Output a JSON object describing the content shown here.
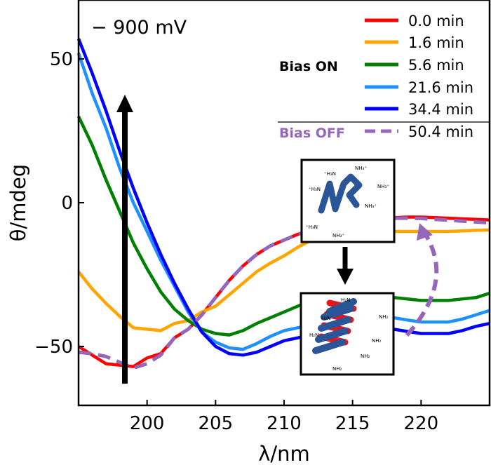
{
  "chart_data": {
    "type": "line",
    "xlabel": "λ/nm",
    "ylabel": "θ/mdeg",
    "xlim": [
      195,
      225
    ],
    "ylim": [
      -70.5,
      70.5
    ],
    "xticks": [
      200,
      205,
      210,
      215,
      220
    ],
    "yticks": [
      -50,
      0,
      50
    ],
    "grid": false,
    "annotation": "− 900 mV",
    "legend": {
      "placement": "top-right",
      "group_on_label": "Bias ON",
      "group_off_label": "Bias OFF"
    },
    "x": [
      195,
      196,
      197,
      198,
      199,
      200,
      201,
      202,
      203,
      204,
      205,
      206,
      207,
      208,
      209,
      210,
      211,
      212,
      213,
      214,
      215,
      216,
      217,
      218,
      219,
      220,
      221,
      222,
      223,
      224,
      225
    ],
    "series": [
      {
        "name": "0.0 min",
        "group": "on",
        "color": "#ff0000",
        "style": "solid",
        "values": [
          -50,
          -53,
          -56,
          -56.5,
          -57,
          -54,
          -52.5,
          -47,
          -44,
          -39,
          -33,
          -27,
          -22,
          -18,
          -15,
          -13,
          -11,
          -9.5,
          -8,
          -7,
          -6.5,
          -6,
          -5.5,
          -5.2,
          -5,
          -5,
          -5.2,
          -5.4,
          -5.6,
          -5.8,
          -6
        ]
      },
      {
        "name": "1.6 min",
        "group": "on",
        "color": "#ffa500",
        "style": "solid",
        "values": [
          -24,
          -30,
          -35,
          -39.5,
          -43.5,
          -44,
          -44.5,
          -42,
          -41,
          -38,
          -36,
          -32,
          -28,
          -24,
          -21,
          -18.5,
          -15.5,
          -13,
          -11.5,
          -10.5,
          -9.8,
          -9.3,
          -9.5,
          -10,
          -10,
          -10,
          -10,
          -10,
          -9.8,
          -9.6,
          -9.5
        ]
      },
      {
        "name": "5.6 min",
        "group": "on",
        "color": "#008000",
        "style": "solid",
        "values": [
          30,
          20,
          8,
          -3,
          -14,
          -23,
          -31,
          -37,
          -41,
          -44,
          -45.5,
          -46,
          -44.5,
          -42,
          -40,
          -38,
          -36,
          -34,
          -33.2,
          -32.7,
          -32.5,
          -32.5,
          -32.6,
          -33,
          -33.5,
          -34,
          -34,
          -34,
          -33.5,
          -33,
          -31.5
        ]
      },
      {
        "name": "21.6 min",
        "group": "on",
        "color": "#1e90ff",
        "style": "solid",
        "values": [
          52,
          38,
          26,
          12,
          0,
          -10,
          -20,
          -29,
          -38,
          -45,
          -48.5,
          -50.5,
          -51,
          -49,
          -46.5,
          -44.5,
          -43.5,
          -42.5,
          -41.2,
          -40.2,
          -39.7,
          -39.5,
          -39.7,
          -40,
          -40.8,
          -41.5,
          -41.5,
          -41.5,
          -40.5,
          -39,
          -37.5
        ]
      },
      {
        "name": "34.4 min",
        "group": "on",
        "color": "#0000ff",
        "style": "solid",
        "values": [
          57,
          45,
          32,
          18,
          5,
          -7,
          -18,
          -28,
          -37,
          -45,
          -50,
          -52.5,
          -53,
          -52,
          -50,
          -48,
          -47,
          -46,
          -45,
          -44,
          -43.7,
          -43.5,
          -43.7,
          -44,
          -44.8,
          -45.5,
          -45.5,
          -45.5,
          -44.5,
          -43,
          -42
        ]
      },
      {
        "name": "50.4 min",
        "group": "off",
        "color": "#9467bd",
        "style": "dashed",
        "values": [
          -52,
          -52.5,
          -53.5,
          -55.5,
          -57.5,
          -56,
          -53,
          -47,
          -44,
          -39,
          -33,
          -27,
          -22,
          -18,
          -15,
          -13,
          -11,
          -9.5,
          -8,
          -7,
          -6.5,
          -6,
          -5.6,
          -5.4,
          -5.4,
          -5.5,
          -5.8,
          -6.1,
          -6.4,
          -6.7,
          -7
        ]
      }
    ]
  },
  "insets": {
    "unfolded_labels": [
      "NH₃⁺",
      "⁺H₃N",
      "NH₃⁺",
      "⁺H₃N",
      "NH₃⁺",
      "⁺H₃N",
      "NH₃⁺"
    ],
    "helix_labels": [
      "H₂N",
      "NH₂",
      "H₂N",
      "H₂N",
      "NH₂",
      "NH₂",
      "NH₂"
    ]
  }
}
